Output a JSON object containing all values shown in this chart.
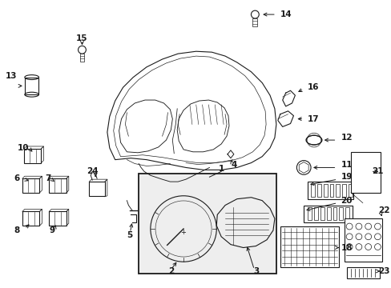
{
  "background_color": "#ffffff",
  "line_color": "#1a1a1a",
  "fig_width": 4.89,
  "fig_height": 3.6,
  "dpi": 100,
  "label_fontsize": 7.5,
  "lw": 0.8
}
